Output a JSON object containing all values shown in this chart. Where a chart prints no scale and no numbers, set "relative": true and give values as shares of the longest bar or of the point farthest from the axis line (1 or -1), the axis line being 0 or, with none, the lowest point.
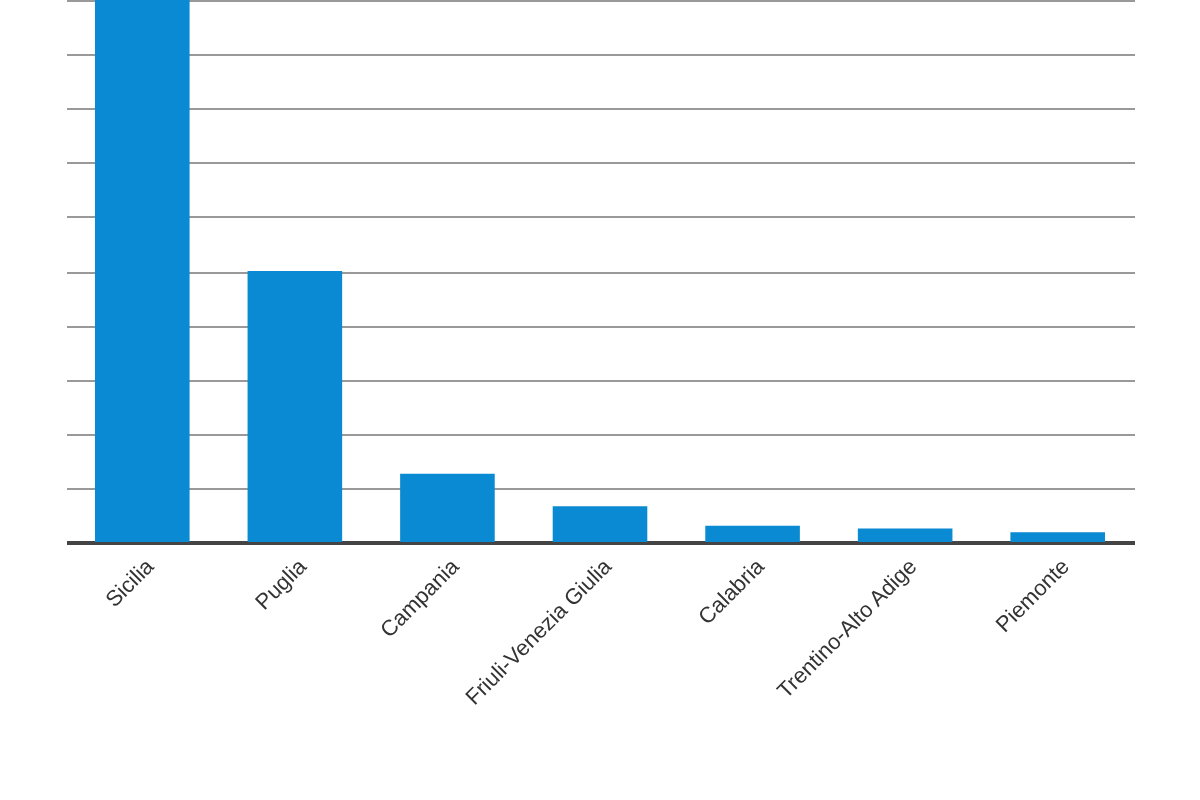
{
  "chart_data": {
    "type": "bar",
    "relative": true,
    "categories": [
      "Sicilia",
      "Puglia",
      "Campania",
      "Friuli-Venezia Giulia",
      "Calabria",
      "Trentino-Alto Adige",
      "Piemonte"
    ],
    "values": [
      1,
      0.5,
      0.126,
      0.066,
      0.03,
      0.025,
      0.018
    ],
    "color": "#0a8ad2",
    "grid": "y"
  }
}
